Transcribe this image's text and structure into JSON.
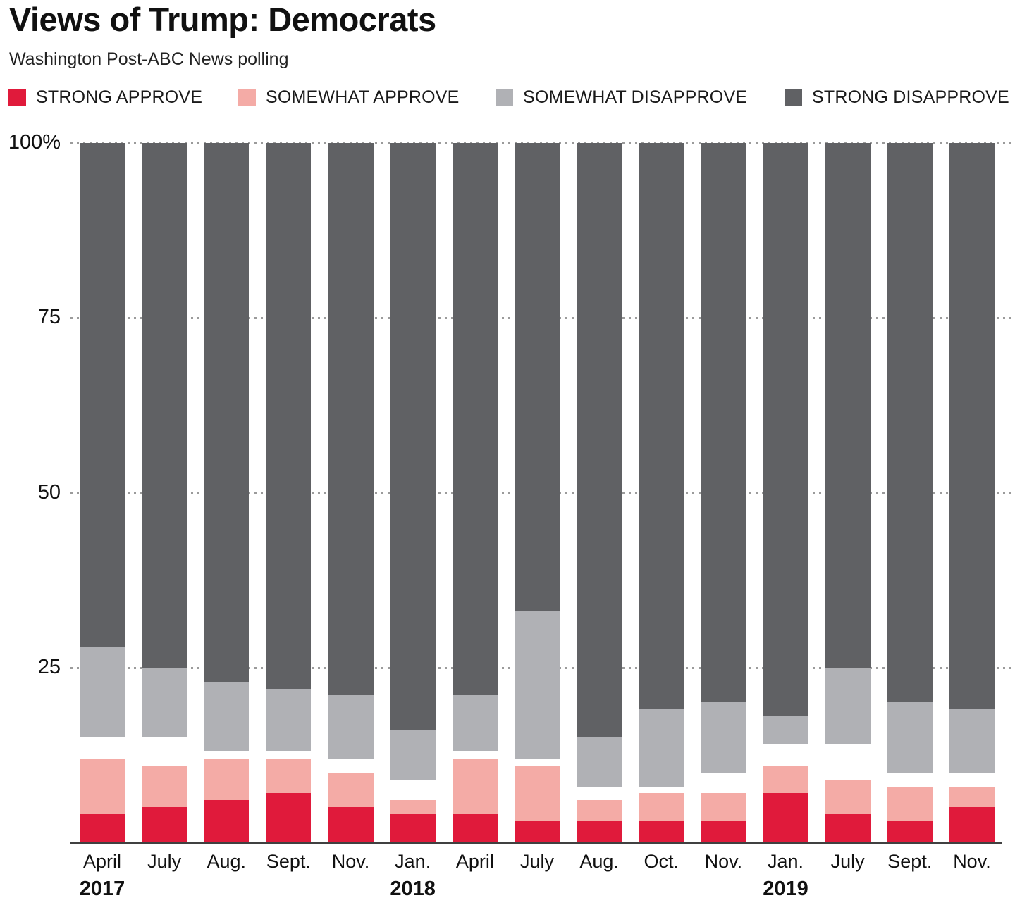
{
  "header": {
    "title_prefix": "Views of Trump: ",
    "title_emphasis": "Democrats",
    "subtitle": "Washington Post-ABC News polling"
  },
  "legend": {
    "items": [
      {
        "label": "STRONG APPROVE",
        "color": "#e01a3b"
      },
      {
        "label": "SOMEWHAT APPROVE",
        "color": "#f4aba6"
      },
      {
        "label": "SOMEWHAT DISAPPROVE",
        "color": "#b0b1b5"
      },
      {
        "label": "STRONG DISAPPROVE",
        "color": "#606164"
      }
    ]
  },
  "y_axis": {
    "tick_labels": [
      "100%",
      "75",
      "50",
      "25"
    ],
    "tick_values": [
      100,
      75,
      50,
      25
    ]
  },
  "x_axis": {
    "year_labels": [
      {
        "label": "2017",
        "bar_index": 0
      },
      {
        "label": "2018",
        "bar_index": 5
      },
      {
        "label": "2019",
        "bar_index": 11
      }
    ]
  },
  "chart_data": {
    "type": "bar",
    "stacked": true,
    "title": "Views of Trump: Democrats",
    "subtitle": "Washington Post-ABC News polling",
    "categories": [
      "April",
      "July",
      "Aug.",
      "Sept.",
      "Nov.",
      "Jan.",
      "April",
      "July",
      "Aug.",
      "Oct.",
      "Nov.",
      "Jan.",
      "July",
      "Sept.",
      "Nov."
    ],
    "category_years": [
      "2017",
      "2017",
      "2017",
      "2017",
      "2017",
      "2018",
      "2018",
      "2018",
      "2018",
      "2018",
      "2018",
      "2019",
      "2019",
      "2019",
      "2019"
    ],
    "ylim": [
      0,
      100
    ],
    "yticks": [
      100,
      75,
      50,
      25
    ],
    "grid": "dotted-horizontal",
    "legend_position": "top",
    "layout_note": "approve series stack up from 0; disapprove series stack down from 100; remaining white gap = no opinion",
    "series": [
      {
        "name": "STRONG APPROVE",
        "anchor": "bottom",
        "color": "#e01a3b",
        "values": [
          4,
          5,
          6,
          7,
          5,
          4,
          4,
          3,
          3,
          3,
          3,
          7,
          4,
          3,
          5
        ]
      },
      {
        "name": "SOMEWHAT APPROVE",
        "anchor": "bottom",
        "color": "#f4aba6",
        "values": [
          8,
          6,
          6,
          5,
          5,
          2,
          8,
          8,
          3,
          4,
          4,
          4,
          5,
          5,
          3
        ]
      },
      {
        "name": "SOMEWHAT DISAPPROVE",
        "anchor": "top",
        "color": "#b0b1b5",
        "values": [
          13,
          10,
          10,
          9,
          9,
          7,
          8,
          21,
          7,
          11,
          10,
          4,
          11,
          10,
          9
        ]
      },
      {
        "name": "STRONG DISAPPROVE",
        "anchor": "top",
        "color": "#606164",
        "values": [
          72,
          75,
          77,
          78,
          79,
          84,
          79,
          67,
          85,
          81,
          80,
          82,
          75,
          80,
          81
        ]
      }
    ],
    "no_opinion_gap": [
      3,
      4,
      1,
      1,
      2,
      3,
      1,
      1,
      2,
      1,
      3,
      3,
      5,
      2,
      2
    ]
  }
}
